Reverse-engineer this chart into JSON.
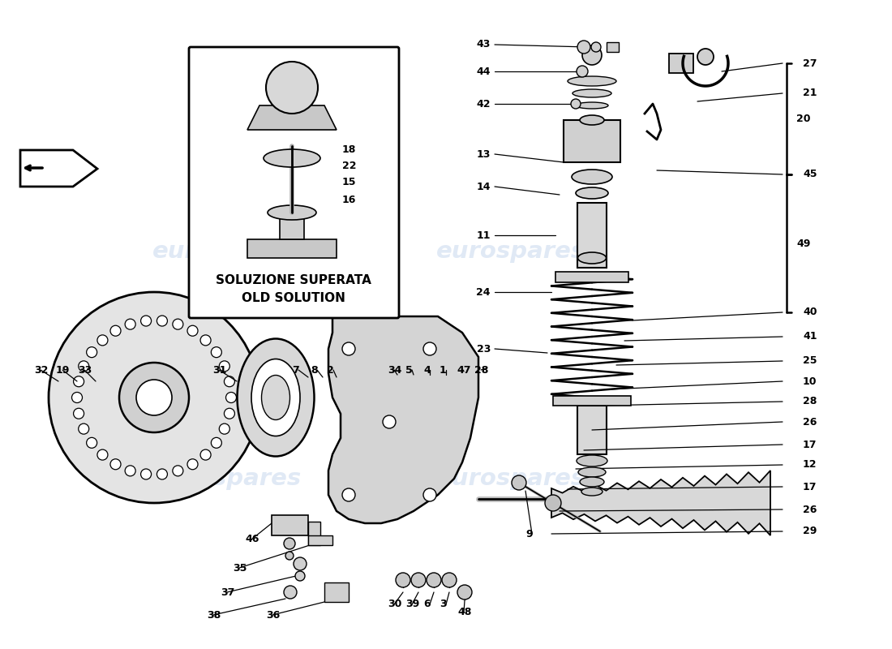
{
  "bg_color": "#ffffff",
  "watermark_color": "#c8d8ee",
  "watermark_text": "eurospares",
  "box_label_line1": "SOLUZIONE SUPERATA",
  "box_label_line2": "OLD SOLUTION",
  "fig_w": 11.0,
  "fig_h": 8.0,
  "dpi": 100,
  "xlim": [
    0,
    1100
  ],
  "ylim": [
    0,
    800
  ]
}
